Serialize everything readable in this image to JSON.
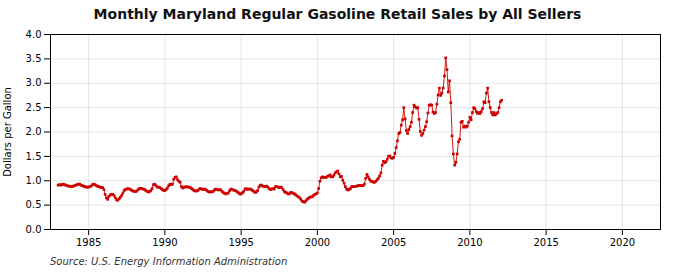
{
  "chart_data": {
    "type": "line",
    "title": "Monthly Maryland Regular Gasoline Retail Sales by All Sellers",
    "ylabel": "Dollars per Gallon",
    "source": "Source: U.S. Energy Information Administration",
    "color": "#cc0000",
    "marker": "square",
    "grid": true,
    "xlim": [
      1982.5,
      2022.5
    ],
    "ylim": [
      0.0,
      4.0
    ],
    "xticks": [
      1985,
      1990,
      1995,
      2000,
      2005,
      2010,
      2015,
      2020
    ],
    "yticks": [
      {
        "value": 0.0,
        "label": "0.0"
      },
      0.5,
      {
        "value": 1.0,
        "label": "1.0"
      },
      1.5,
      {
        "value": 2.0,
        "label": "2.0"
      },
      2.5,
      {
        "value": 3.0,
        "label": "3.0"
      },
      3.5,
      {
        "value": 4.0,
        "label": "4.0"
      }
    ],
    "x": [
      1983,
      1983.0833333333333,
      1983.1666666666667,
      1983.25,
      1983.3333333333333,
      1983.4166666666667,
      1983.5,
      1983.5833333333333,
      1983.6666666666667,
      1983.75,
      1983.8333333333333,
      1983.9166666666667,
      1984,
      1984.0833333333333,
      1984.1666666666667,
      1984.25,
      1984.3333333333333,
      1984.4166666666667,
      1984.5,
      1984.5833333333333,
      1984.6666666666667,
      1984.75,
      1984.8333333333333,
      1984.9166666666667,
      1985,
      1985.0833333333333,
      1985.1666666666667,
      1985.25,
      1985.3333333333333,
      1985.4166666666667,
      1985.5,
      1985.5833333333333,
      1985.6666666666667,
      1985.75,
      1985.8333333333333,
      1985.9166666666667,
      1986,
      1986.0833333333333,
      1986.1666666666667,
      1986.25,
      1986.3333333333333,
      1986.4166666666667,
      1986.5,
      1986.5833333333333,
      1986.6666666666667,
      1986.75,
      1986.8333333333333,
      1986.9166666666667,
      1987,
      1987.0833333333333,
      1987.1666666666667,
      1987.25,
      1987.3333333333333,
      1987.4166666666667,
      1987.5,
      1987.5833333333333,
      1987.6666666666667,
      1987.75,
      1987.8333333333333,
      1987.9166666666667,
      1988,
      1988.0833333333333,
      1988.1666666666667,
      1988.25,
      1988.3333333333333,
      1988.4166666666667,
      1988.5,
      1988.5833333333333,
      1988.6666666666667,
      1988.75,
      1988.8333333333333,
      1988.9166666666667,
      1989,
      1989.0833333333333,
      1989.1666666666667,
      1989.25,
      1989.3333333333333,
      1989.4166666666667,
      1989.5,
      1989.5833333333333,
      1989.6666666666667,
      1989.75,
      1989.8333333333333,
      1989.9166666666667,
      1990,
      1990.0833333333333,
      1990.1666666666667,
      1990.25,
      1990.3333333333333,
      1990.4166666666667,
      1990.5,
      1990.5833333333333,
      1990.6666666666667,
      1990.75,
      1990.8333333333333,
      1990.9166666666667,
      1991,
      1991.0833333333333,
      1991.1666666666667,
      1991.25,
      1991.3333333333333,
      1991.4166666666667,
      1991.5,
      1991.5833333333333,
      1991.6666666666667,
      1991.75,
      1991.8333333333333,
      1991.9166666666667,
      1992,
      1992.0833333333333,
      1992.1666666666667,
      1992.25,
      1992.3333333333333,
      1992.4166666666667,
      1992.5,
      1992.5833333333333,
      1992.6666666666667,
      1992.75,
      1992.8333333333333,
      1992.9166666666667,
      1993,
      1993.0833333333333,
      1993.1666666666667,
      1993.25,
      1993.3333333333333,
      1993.4166666666667,
      1993.5,
      1993.5833333333333,
      1993.6666666666667,
      1993.75,
      1993.8333333333333,
      1993.9166666666667,
      1994,
      1994.0833333333333,
      1994.1666666666667,
      1994.25,
      1994.3333333333333,
      1994.4166666666667,
      1994.5,
      1994.5833333333333,
      1994.6666666666667,
      1994.75,
      1994.8333333333333,
      1994.9166666666667,
      1995,
      1995.0833333333333,
      1995.1666666666667,
      1995.25,
      1995.3333333333333,
      1995.4166666666667,
      1995.5,
      1995.5833333333333,
      1995.6666666666667,
      1995.75,
      1995.8333333333333,
      1995.9166666666667,
      1996,
      1996.0833333333333,
      1996.1666666666667,
      1996.25,
      1996.3333333333333,
      1996.4166666666667,
      1996.5,
      1996.5833333333333,
      1996.6666666666667,
      1996.75,
      1996.8333333333333,
      1996.9166666666667,
      1997,
      1997.0833333333333,
      1997.1666666666667,
      1997.25,
      1997.3333333333333,
      1997.4166666666667,
      1997.5,
      1997.5833333333333,
      1997.6666666666667,
      1997.75,
      1997.8333333333333,
      1997.9166666666667,
      1998,
      1998.0833333333333,
      1998.1666666666667,
      1998.25,
      1998.3333333333333,
      1998.4166666666667,
      1998.5,
      1998.5833333333333,
      1998.6666666666667,
      1998.75,
      1998.8333333333333,
      1998.9166666666667,
      1999,
      1999.0833333333333,
      1999.1666666666667,
      1999.25,
      1999.3333333333333,
      1999.4166666666667,
      1999.5,
      1999.5833333333333,
      1999.6666666666667,
      1999.75,
      1999.8333333333333,
      1999.9166666666667,
      2000,
      2000.0833333333333,
      2000.1666666666667,
      2000.25,
      2000.3333333333333,
      2000.4166666666667,
      2000.5,
      2000.5833333333333,
      2000.6666666666667,
      2000.75,
      2000.8333333333333,
      2000.9166666666667,
      2001,
      2001.0833333333333,
      2001.1666666666667,
      2001.25,
      2001.3333333333333,
      2001.4166666666667,
      2001.5,
      2001.5833333333333,
      2001.6666666666667,
      2001.75,
      2001.8333333333333,
      2001.9166666666667,
      2002,
      2002.0833333333333,
      2002.1666666666667,
      2002.25,
      2002.3333333333333,
      2002.4166666666667,
      2002.5,
      2002.5833333333333,
      2002.6666666666667,
      2002.75,
      2002.8333333333333,
      2002.9166666666667,
      2003,
      2003.0833333333333,
      2003.1666666666667,
      2003.25,
      2003.3333333333333,
      2003.4166666666667,
      2003.5,
      2003.5833333333333,
      2003.6666666666667,
      2003.75,
      2003.8333333333333,
      2003.9166666666667,
      2004,
      2004.0833333333333,
      2004.1666666666667,
      2004.25,
      2004.3333333333333,
      2004.4166666666667,
      2004.5,
      2004.5833333333333,
      2004.6666666666667,
      2004.75,
      2004.8333333333333,
      2004.9166666666667,
      2005,
      2005.0833333333333,
      2005.1666666666667,
      2005.25,
      2005.3333333333333,
      2005.4166666666667,
      2005.5,
      2005.5833333333333,
      2005.6666666666667,
      2005.75,
      2005.8333333333333,
      2005.9166666666667,
      2006,
      2006.0833333333333,
      2006.1666666666667,
      2006.25,
      2006.3333333333333,
      2006.4166666666667,
      2006.5,
      2006.5833333333333,
      2006.6666666666667,
      2006.75,
      2006.8333333333333,
      2006.9166666666667,
      2007,
      2007.0833333333333,
      2007.1666666666667,
      2007.25,
      2007.3333333333333,
      2007.4166666666667,
      2007.5,
      2007.5833333333333,
      2007.6666666666667,
      2007.75,
      2007.8333333333333,
      2007.9166666666667,
      2008,
      2008.0833333333333,
      2008.1666666666667,
      2008.25,
      2008.3333333333333,
      2008.4166666666667,
      2008.5,
      2008.5833333333333,
      2008.6666666666667,
      2008.75,
      2008.8333333333333,
      2008.9166666666667,
      2009,
      2009.0833333333333,
      2009.1666666666667,
      2009.25,
      2009.3333333333333,
      2009.4166666666667,
      2009.5,
      2009.5833333333333,
      2009.6666666666667,
      2009.75,
      2009.8333333333333,
      2009.9166666666667,
      2010,
      2010.0833333333333,
      2010.1666666666667,
      2010.25,
      2010.3333333333333,
      2010.4166666666667,
      2010.5,
      2010.5833333333333,
      2010.6666666666667,
      2010.75,
      2010.8333333333333,
      2010.9166666666667,
      2011,
      2011.0833333333333,
      2011.1666666666667,
      2011.25,
      2011.3333333333333,
      2011.4166666666667,
      2011.5,
      2011.5833333333333,
      2011.6666666666667,
      2011.75,
      2011.8333333333333,
      2011.9166666666667,
      2012,
      2012.0833333333333
    ],
    "values": [
      0.91,
      0.92,
      0.91,
      0.92,
      0.93,
      0.92,
      0.91,
      0.9,
      0.89,
      0.89,
      0.88,
      0.88,
      0.89,
      0.9,
      0.91,
      0.92,
      0.93,
      0.93,
      0.91,
      0.9,
      0.89,
      0.88,
      0.87,
      0.87,
      0.87,
      0.88,
      0.89,
      0.92,
      0.93,
      0.92,
      0.9,
      0.89,
      0.88,
      0.87,
      0.86,
      0.86,
      0.82,
      0.72,
      0.65,
      0.62,
      0.68,
      0.71,
      0.72,
      0.72,
      0.7,
      0.65,
      0.61,
      0.6,
      0.63,
      0.66,
      0.7,
      0.75,
      0.8,
      0.82,
      0.83,
      0.84,
      0.83,
      0.82,
      0.8,
      0.79,
      0.78,
      0.78,
      0.79,
      0.82,
      0.84,
      0.84,
      0.84,
      0.83,
      0.82,
      0.8,
      0.78,
      0.77,
      0.78,
      0.8,
      0.84,
      0.92,
      0.93,
      0.9,
      0.87,
      0.87,
      0.86,
      0.84,
      0.82,
      0.8,
      0.8,
      0.82,
      0.85,
      0.9,
      0.93,
      0.92,
      0.93,
      1.03,
      1.07,
      1.08,
      1.02,
      0.99,
      0.97,
      0.88,
      0.85,
      0.87,
      0.87,
      0.88,
      0.87,
      0.87,
      0.86,
      0.84,
      0.82,
      0.8,
      0.79,
      0.79,
      0.8,
      0.83,
      0.84,
      0.83,
      0.82,
      0.83,
      0.82,
      0.8,
      0.78,
      0.77,
      0.77,
      0.78,
      0.78,
      0.81,
      0.83,
      0.82,
      0.81,
      0.82,
      0.81,
      0.78,
      0.76,
      0.74,
      0.73,
      0.74,
      0.75,
      0.8,
      0.83,
      0.82,
      0.81,
      0.8,
      0.79,
      0.77,
      0.75,
      0.73,
      0.73,
      0.75,
      0.78,
      0.83,
      0.84,
      0.82,
      0.83,
      0.83,
      0.82,
      0.8,
      0.78,
      0.76,
      0.77,
      0.8,
      0.87,
      0.91,
      0.91,
      0.89,
      0.88,
      0.88,
      0.89,
      0.87,
      0.84,
      0.82,
      0.83,
      0.84,
      0.83,
      0.88,
      0.88,
      0.87,
      0.86,
      0.87,
      0.86,
      0.82,
      0.78,
      0.76,
      0.75,
      0.73,
      0.73,
      0.76,
      0.76,
      0.74,
      0.73,
      0.71,
      0.69,
      0.67,
      0.65,
      0.62,
      0.58,
      0.57,
      0.56,
      0.59,
      0.62,
      0.64,
      0.66,
      0.67,
      0.67,
      0.7,
      0.72,
      0.73,
      0.75,
      0.84,
      0.99,
      1.06,
      1.08,
      1.07,
      1.07,
      1.07,
      1.09,
      1.1,
      1.12,
      1.08,
      1.08,
      1.11,
      1.16,
      1.18,
      1.2,
      1.14,
      1.08,
      1.09,
      1.01,
      0.95,
      0.88,
      0.83,
      0.81,
      0.82,
      0.84,
      0.88,
      0.88,
      0.88,
      0.88,
      0.89,
      0.9,
      0.9,
      0.9,
      0.9,
      0.9,
      0.93,
      1.05,
      1.13,
      1.08,
      1.03,
      0.99,
      0.99,
      0.97,
      0.97,
      0.99,
      1.02,
      1.05,
      1.1,
      1.16,
      1.32,
      1.4,
      1.37,
      1.39,
      1.44,
      1.5,
      1.51,
      1.47,
      1.46,
      1.48,
      1.56,
      1.68,
      1.82,
      1.97,
      1.99,
      2.14,
      2.25,
      2.5,
      2.27,
      2.03,
      1.97,
      2.05,
      2.11,
      2.2,
      2.4,
      2.55,
      2.52,
      2.49,
      2.5,
      2.26,
      2.01,
      1.93,
      1.97,
      2.04,
      2.11,
      2.21,
      2.39,
      2.55,
      2.56,
      2.55,
      2.41,
      2.38,
      2.4,
      2.57,
      2.76,
      2.9,
      2.75,
      2.8,
      2.9,
      3.15,
      3.52,
      3.28,
      2.82,
      3.05,
      2.6,
      1.92,
      1.55,
      1.32,
      1.38,
      1.55,
      1.8,
      1.85,
      2.2,
      2.22,
      2.1,
      2.12,
      2.1,
      2.12,
      2.2,
      2.3,
      2.25,
      2.4,
      2.5,
      2.48,
      2.42,
      2.38,
      2.4,
      2.38,
      2.42,
      2.48,
      2.62,
      2.6,
      2.8,
      2.9,
      2.62,
      2.5,
      2.4,
      2.35,
      2.4,
      2.35,
      2.38,
      2.4,
      2.5,
      2.62,
      2.65
    ]
  }
}
